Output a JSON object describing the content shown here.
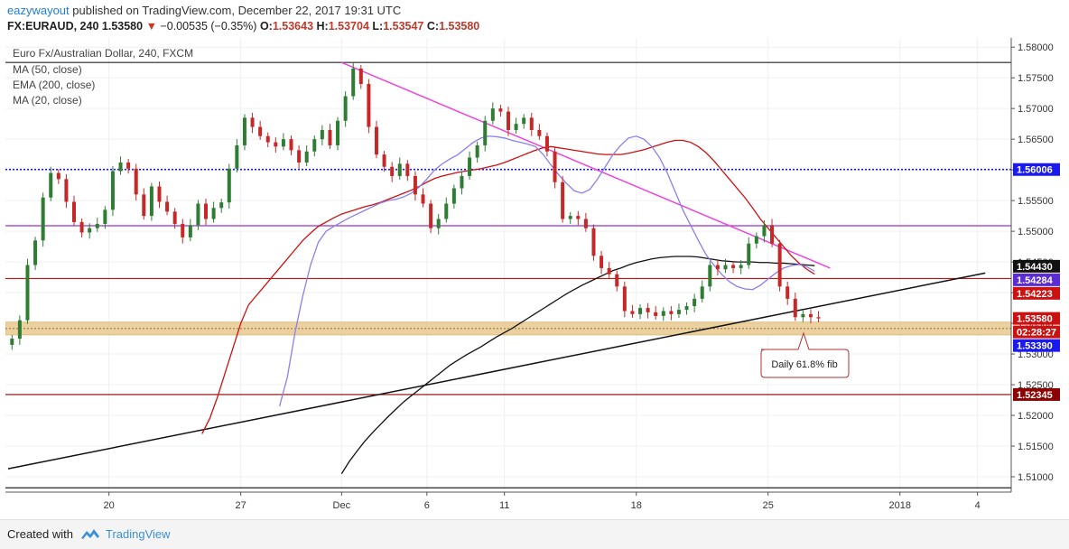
{
  "header": {
    "author": "eazywayout",
    "published_text": "published on TradingView.com, December 22, 2017 19:31 UTC",
    "symbol_line": {
      "symbol": "FX:EURAUD, 240",
      "last": "1.53580",
      "change": "−0.00535 (−0.35%)",
      "o_label": "O:",
      "o": "1.53643",
      "h_label": "H:",
      "h": "1.53704",
      "l_label": "L:",
      "l": "1.53547",
      "c_label": "C:",
      "c": "1.53580"
    }
  },
  "legend": {
    "title": "Euro Fx/Australian Dollar, 240, FXCM",
    "indicators": [
      "MA (50, close)",
      "EMA (200, close)",
      "MA (20, close)"
    ]
  },
  "annotation": {
    "text": "Daily 61.8% fib"
  },
  "footer": {
    "created_with": "Created with",
    "brand": "TradingView"
  },
  "colors": {
    "up": "#2e7d32",
    "down": "#c62828",
    "ma50": "#cc1111",
    "ema200": "#111111",
    "ma20": "#8a7ff0",
    "trendline_down": "#ee44dd",
    "trendline_up": "#111111",
    "blue_dotted": "#1a1aee",
    "fib_zone": "#e9c98c",
    "h_red": "#cc1111",
    "h_purple": "#9933cc",
    "h_dark_red": "#8b0000"
  },
  "chart_data": {
    "type": "candlestick",
    "ylim": [
      1.5075,
      1.5815
    ],
    "x_range": [
      0,
      129
    ],
    "yticks": [
      1.51,
      1.515,
      1.52,
      1.525,
      1.53,
      1.535,
      1.54,
      1.545,
      1.55,
      1.555,
      1.56,
      1.565,
      1.57,
      1.575,
      1.58
    ],
    "ytick_labels": [
      "1.51000",
      "1.51500",
      "1.52000",
      "1.52500",
      "1.53000",
      "1.53500",
      "1.54000",
      "1.54500",
      "1.55000",
      "1.55500",
      "1.56000",
      "1.56500",
      "1.57000",
      "1.57500",
      "1.58000"
    ],
    "xticks": [
      {
        "i": 13,
        "label": "20"
      },
      {
        "i": 30,
        "label": "27"
      },
      {
        "i": 43,
        "label": "Dec"
      },
      {
        "i": 54,
        "label": "6"
      },
      {
        "i": 64,
        "label": "11"
      },
      {
        "i": 81,
        "label": "18"
      },
      {
        "i": 98,
        "label": "25"
      },
      {
        "i": 115,
        "label": "2018"
      },
      {
        "i": 125,
        "label": "4"
      }
    ],
    "closes": [
      1.5325,
      1.5355,
      1.5445,
      1.5485,
      1.5555,
      1.5595,
      1.5585,
      1.5548,
      1.5515,
      1.5498,
      1.5505,
      1.5512,
      1.5535,
      1.5598,
      1.5612,
      1.5602,
      1.556,
      1.5525,
      1.5573,
      1.5548,
      1.5532,
      1.5512,
      1.549,
      1.551,
      1.5545,
      1.552,
      1.5538,
      1.5547,
      1.5602,
      1.564,
      1.5685,
      1.567,
      1.5655,
      1.5645,
      1.5638,
      1.565,
      1.5632,
      1.5612,
      1.563,
      1.565,
      1.5665,
      1.564,
      1.568,
      1.572,
      1.5765,
      1.574,
      1.567,
      1.5625,
      1.5605,
      1.559,
      1.561,
      1.559,
      1.556,
      1.5545,
      1.5505,
      1.552,
      1.5545,
      1.557,
      1.559,
      1.562,
      1.564,
      1.568,
      1.57,
      1.5695,
      1.5665,
      1.5675,
      1.5685,
      1.5665,
      1.5655,
      1.563,
      1.558,
      1.552,
      1.5525,
      1.552,
      1.5505,
      1.546,
      1.544,
      1.543,
      1.541,
      1.537,
      1.5365,
      1.5375,
      1.5368,
      1.5362,
      1.537,
      1.5365,
      1.5372,
      1.5378,
      1.539,
      1.541,
      1.5445,
      1.5438,
      1.5445,
      1.544,
      1.5445,
      1.548,
      1.5492,
      1.551,
      1.548,
      1.541,
      1.539,
      1.536,
      1.5365,
      1.536,
      1.5358
    ],
    "ma50": [
      1.517,
      1.5195,
      1.523,
      1.527,
      1.531,
      1.535,
      1.538,
      1.5395,
      1.541,
      1.5425,
      1.544,
      1.5455,
      1.547,
      1.5485,
      1.5497,
      1.5508,
      1.5515,
      1.5522,
      1.5528,
      1.5532,
      1.5536,
      1.554,
      1.5543,
      1.5547,
      1.5552,
      1.5557,
      1.5562,
      1.5567,
      1.5573,
      1.558,
      1.5586,
      1.559,
      1.5593,
      1.5596,
      1.5598,
      1.56,
      1.5602,
      1.5605,
      1.5608,
      1.5612,
      1.5617,
      1.5622,
      1.5627,
      1.5632,
      1.5636,
      1.5638,
      1.5636,
      1.5634,
      1.5632,
      1.563,
      1.5628,
      1.5626,
      1.5625,
      1.5625,
      1.5625,
      1.5627,
      1.563,
      1.5633,
      1.5637,
      1.5641,
      1.5645,
      1.5648,
      1.5648,
      1.5645,
      1.5638,
      1.5628,
      1.5615,
      1.56,
      1.5585,
      1.557,
      1.5555,
      1.5538,
      1.552,
      1.5505,
      1.549,
      1.5475,
      1.546,
      1.5448,
      1.5438,
      1.543
    ],
    "ema200": [
      1.5105,
      1.5125,
      1.5142,
      1.5158,
      1.5172,
      1.5185,
      1.5198,
      1.521,
      1.5222,
      1.5232,
      1.5242,
      1.5252,
      1.5262,
      1.5272,
      1.5282,
      1.529,
      1.5298,
      1.5305,
      1.5312,
      1.532,
      1.5328,
      1.5335,
      1.5342,
      1.535,
      1.5358,
      1.5366,
      1.5374,
      1.5382,
      1.539,
      1.5398,
      1.5405,
      1.5412,
      1.5418,
      1.5424,
      1.543,
      1.5436,
      1.544,
      1.5445,
      1.5449,
      1.5452,
      1.5455,
      1.5457,
      1.5458,
      1.5459,
      1.5459,
      1.5459,
      1.5458,
      1.5456,
      1.5454,
      1.5452,
      1.5451,
      1.545,
      1.545,
      1.545,
      1.5449,
      1.5449,
      1.5448,
      1.5448,
      1.5447,
      1.5446,
      1.5445,
      1.5444
    ],
    "ma20": [
      1.5215,
      1.5262,
      1.5335,
      1.5395,
      1.5445,
      1.5482,
      1.55,
      1.5508,
      1.5515,
      1.5522,
      1.5528,
      1.5534,
      1.554,
      1.5546,
      1.555,
      1.5552,
      1.5556,
      1.5562,
      1.5572,
      1.5585,
      1.56,
      1.561,
      1.5618,
      1.5625,
      1.5635,
      1.5645,
      1.5652,
      1.5655,
      1.5654,
      1.5652,
      1.5648,
      1.5645,
      1.5642,
      1.5638,
      1.5625,
      1.5608,
      1.5592,
      1.5578,
      1.5566,
      1.5562,
      1.5568,
      1.5585,
      1.5605,
      1.5625,
      1.564,
      1.5652,
      1.5655,
      1.565,
      1.5638,
      1.562,
      1.5595,
      1.5565,
      1.5535,
      1.551,
      1.5485,
      1.5462,
      1.5445,
      1.543,
      1.5418,
      1.541,
      1.5406,
      1.5405,
      1.5412,
      1.5422,
      1.5432,
      1.544,
      1.5444,
      1.5446,
      1.5442,
      1.5435
    ],
    "series_names": [
      "MA (50, close)",
      "EMA (200, close)",
      "MA (20, close)"
    ],
    "horizontal_levels": [
      {
        "value": 1.5775,
        "style": "solid",
        "color": "#222222"
      },
      {
        "value": 1.56006,
        "style": "dotted",
        "color": "#1a1aee",
        "label": "1.56006"
      },
      {
        "value": 1.5509,
        "style": "solid",
        "color": "#9933cc"
      },
      {
        "value": 1.5423,
        "style": "solid",
        "color": "#cc1111"
      },
      {
        "value": 1.5234,
        "style": "solid",
        "color": "#8b0000",
        "label": "1.52345"
      },
      {
        "value": 1.5082,
        "style": "solid",
        "color": "#222222"
      }
    ],
    "fib_zone": [
      1.5331,
      1.5352
    ],
    "trendlines": [
      {
        "from": [
          43,
          1.5775
        ],
        "to": [
          106,
          1.544
        ],
        "color": "#ee44dd"
      },
      {
        "from": [
          0,
          1.5113
        ],
        "to": [
          126,
          1.5432
        ],
        "color": "#111111"
      }
    ],
    "price_labels": [
      {
        "value": 1.5443,
        "label": "1.54430",
        "bg": "#111111",
        "fg": "#ffffff"
      },
      {
        "value": 1.54284,
        "label": "1.54284",
        "bg": "#5b2bd6",
        "fg": "#ffffff"
      },
      {
        "value": 1.54223,
        "label": "1.54223",
        "bg": "#cc1111",
        "fg": "#ffffff"
      },
      {
        "value": 1.5358,
        "label": "1.53580",
        "bg": "#cc1111",
        "fg": "#ffffff"
      },
      {
        "value": 1.5339,
        "label": "02:28:27",
        "bg": "#cc1111",
        "fg": "#ffffff"
      },
      {
        "value": 1.5339,
        "label": "1.53390",
        "bg": "#1a1aee",
        "fg": "#ffffff"
      }
    ]
  }
}
